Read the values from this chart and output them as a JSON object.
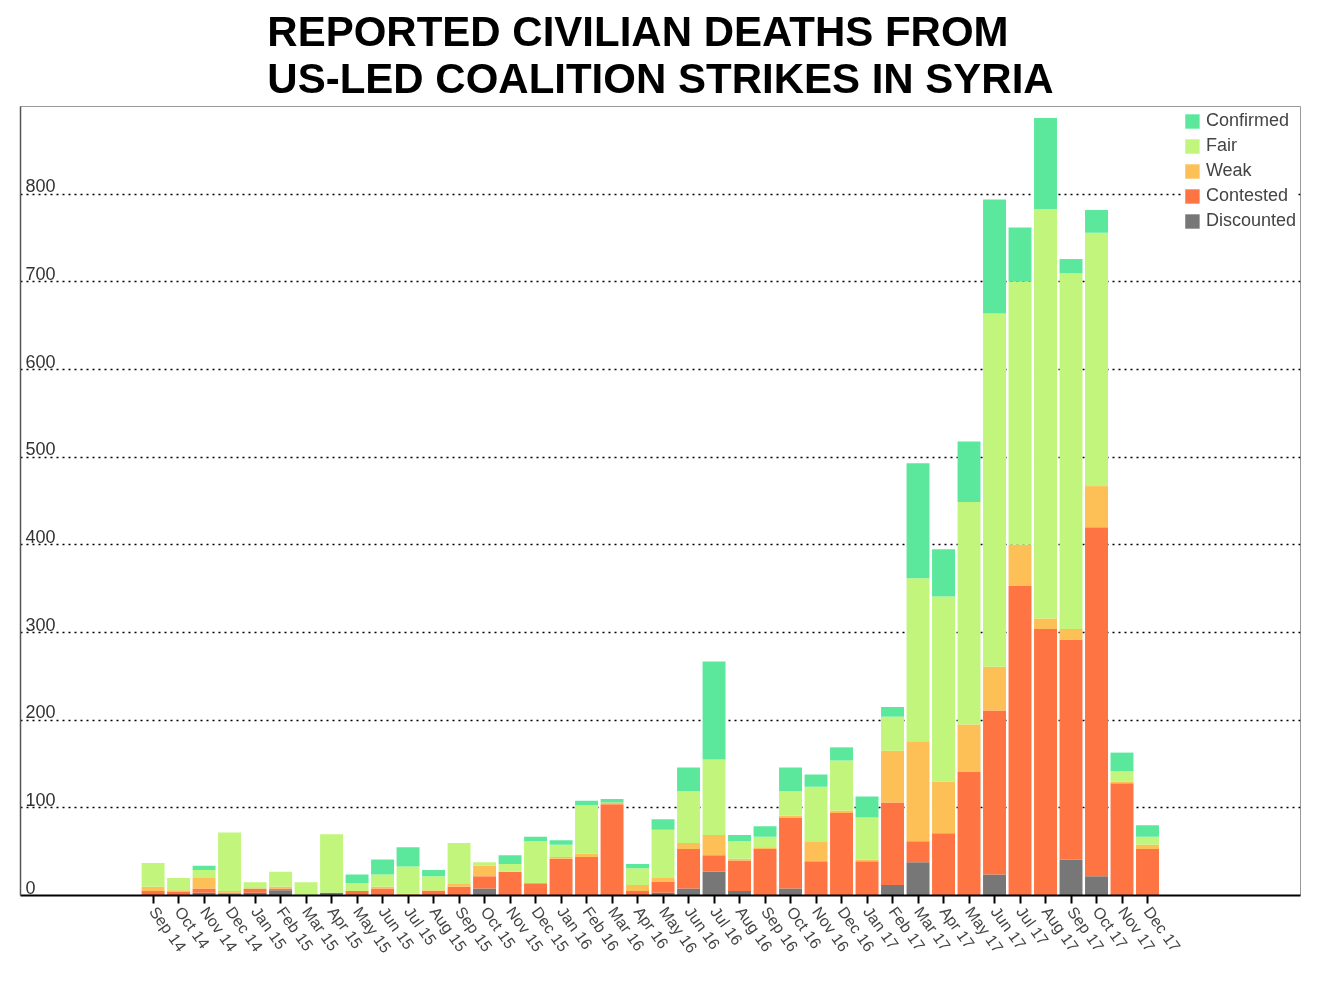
{
  "chart_data": {
    "type": "bar",
    "stacked": true,
    "title": "REPORTED CIVILIAN DEATHS FROM\nUS-LED COALITION STRIKES IN SYRIA",
    "categories": [
      "Sep 14",
      "Oct 14",
      "Nov 14",
      "Dec 14",
      "Jan 15",
      "Feb 15",
      "Mar 15",
      "Apr 15",
      "May 15",
      "Jun 15",
      "Jul 15",
      "Aug 15",
      "Sep 15",
      "Oct 15",
      "Nov 15",
      "Dec 15",
      "Jan 16",
      "Feb 16",
      "Mar 16",
      "Apr 16",
      "May 16",
      "Jun 16",
      "Jul 16",
      "Aug 16",
      "Sep 16",
      "Oct 16",
      "Nov 16",
      "Dec 16",
      "Jan 17",
      "Feb 17",
      "Mar 17",
      "Apr 17",
      "May 17",
      "Jun 17",
      "Jul 17",
      "Aug 17",
      "Sep 17",
      "Oct 17",
      "Nov 17",
      "Dec 17"
    ],
    "series": [
      {
        "name": "Discounted",
        "color": "#777777",
        "values": [
          0,
          0,
          3,
          2,
          3,
          6,
          0,
          3,
          0,
          0,
          0,
          0,
          0,
          8,
          0,
          0,
          0,
          0,
          0,
          0,
          3,
          8,
          27,
          5,
          0,
          8,
          0,
          0,
          0,
          12,
          38,
          0,
          0,
          24,
          0,
          0,
          41,
          22,
          0,
          0
        ]
      },
      {
        "name": "Contested",
        "color": "#fe7443",
        "values": [
          5,
          4,
          5,
          1,
          5,
          2,
          0,
          0,
          5,
          8,
          0,
          5,
          10,
          14,
          27,
          14,
          42,
          44,
          104,
          5,
          13,
          45,
          19,
          35,
          53,
          81,
          39,
          94,
          39,
          94,
          24,
          71,
          141,
          187,
          353,
          304,
          251,
          398,
          128,
          53
        ]
      },
      {
        "name": "Weak",
        "color": "#fdc057",
        "values": [
          5,
          2,
          12,
          2,
          0,
          2,
          0,
          0,
          0,
          2,
          2,
          1,
          4,
          12,
          0,
          0,
          2,
          4,
          2,
          7,
          4,
          7,
          23,
          2,
          2,
          2,
          23,
          3,
          2,
          59,
          114,
          59,
          54,
          50,
          47,
          12,
          12,
          47,
          2,
          5
        ]
      },
      {
        "name": "Fair",
        "color": "#c2f57c",
        "values": [
          27,
          14,
          9,
          67,
          7,
          17,
          15,
          67,
          9,
          14,
          31,
          16,
          46,
          4,
          9,
          48,
          14,
          55,
          0,
          19,
          55,
          59,
          86,
          20,
          12,
          28,
          62,
          57,
          48,
          39,
          186,
          211,
          254,
          403,
          300,
          467,
          406,
          289,
          12,
          9
        ]
      },
      {
        "name": "Confirmed",
        "color": "#5ce89c",
        "values": [
          0,
          0,
          5,
          0,
          0,
          0,
          0,
          0,
          10,
          17,
          22,
          7,
          0,
          0,
          10,
          5,
          5,
          5,
          4,
          5,
          12,
          27,
          112,
          7,
          12,
          27,
          14,
          15,
          24,
          11,
          131,
          54,
          69,
          130,
          62,
          104,
          16,
          26,
          21,
          13
        ]
      }
    ],
    "ylim": [
      0,
      900
    ],
    "yticks": [
      0,
      100,
      200,
      300,
      400,
      500,
      600,
      700,
      800
    ],
    "grid": "y",
    "legend": "top right"
  }
}
